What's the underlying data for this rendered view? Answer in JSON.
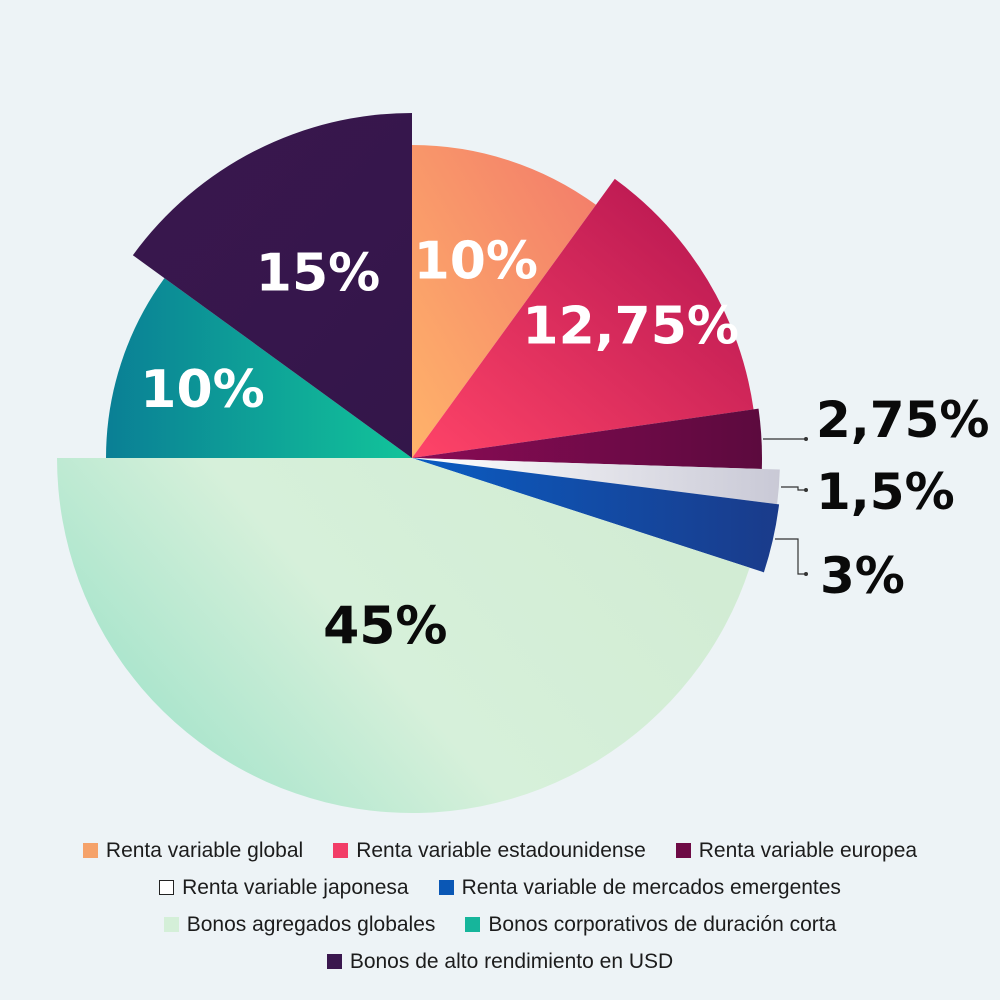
{
  "chart_data": {
    "type": "pie",
    "series": [
      {
        "name": "Renta variable global",
        "value": 10,
        "label": "10%",
        "color": "#f5a26a",
        "label_color": "#ffffff"
      },
      {
        "name": "Renta variable estadounidense",
        "value": 12.75,
        "label": "12,75%",
        "color": "#f23d67",
        "label_color": "#ffffff"
      },
      {
        "name": "Renta variable europea",
        "value": 2.75,
        "label": "2,75%",
        "color": "#6d0a45",
        "label_color": "#0a0a0a"
      },
      {
        "name": "Renta variable japonesa",
        "value": 1.5,
        "label": "1,5%",
        "color": "#f2f2f6",
        "label_color": "#0a0a0a"
      },
      {
        "name": "Renta variable de mercados emergentes",
        "value": 3,
        "label": "3%",
        "color": "#0a57b5",
        "label_color": "#0a0a0a"
      },
      {
        "name": "Bonos agregados globales",
        "value": 45,
        "label": "45%",
        "color": "#d4efd8",
        "label_color": "#0a0a0a"
      },
      {
        "name": "Bonos corporativos de duración corta",
        "value": 10,
        "label": "10%",
        "color": "#16b59b",
        "label_color": "#ffffff"
      },
      {
        "name": "Bonos de alto rendimiento en USD",
        "value": 15,
        "label": "15%",
        "color": "#3a174e",
        "label_color": "#ffffff"
      }
    ],
    "legend_placement": "bottom"
  },
  "legend_rows": [
    [
      0,
      1,
      2
    ],
    [
      3,
      4
    ],
    [
      5,
      6
    ],
    [
      7
    ]
  ]
}
